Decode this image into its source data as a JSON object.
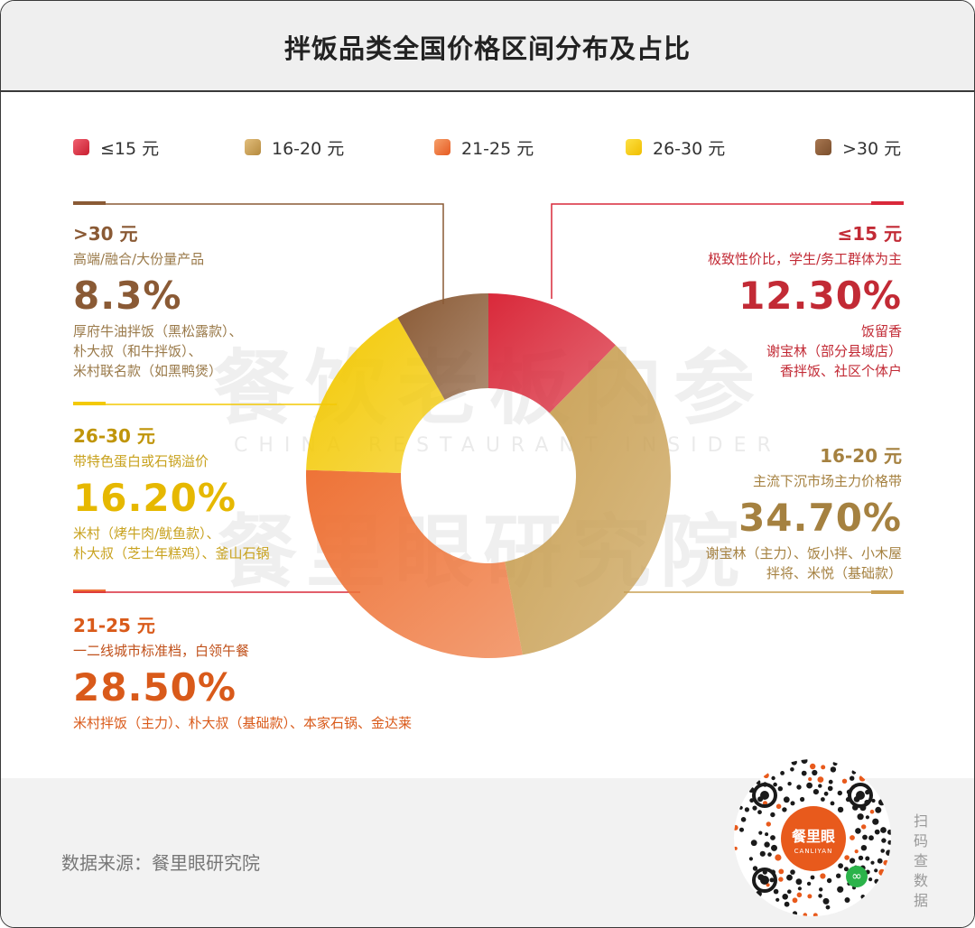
{
  "title": "拌饭品类全国价格区间分布及占比",
  "legend": [
    {
      "label": "≤15 元",
      "color": "#d9293a"
    },
    {
      "label": "16-20 元",
      "color": "#c9a054"
    },
    {
      "label": "21-25 元",
      "color": "#ee7337"
    },
    {
      "label": "26-30 元",
      "color": "#f3c904"
    },
    {
      "label": ">30 元",
      "color": "#8a5a35"
    }
  ],
  "blocks": {
    "b30": {
      "range": ">30 元",
      "desc": "高端/融合/大份量产品",
      "pct": "8.3%",
      "brands": [
        "厚府牛油拌饭（黑松露款）、",
        "朴大叔（和牛拌饭）、",
        "米村联名款（如黑鸭煲）"
      ]
    },
    "b15": {
      "range": "≤15 元",
      "desc": "极致性价比，学生/务工群体为主",
      "pct": "12.30%",
      "brands": [
        "饭留香",
        "谢宝林（部分县域店）",
        "香拌饭、社区个体户"
      ]
    },
    "b26": {
      "range": "26-30 元",
      "desc": "带特色蛋白或石锅溢价",
      "pct": "16.20%",
      "brands": [
        "米村（烤牛肉/鱿鱼款）、",
        "朴大叔（芝士年糕鸡）、釜山石锅"
      ]
    },
    "b16": {
      "range": "16-20 元",
      "desc": "主流下沉市场主力价格带",
      "pct": "34.70%",
      "brands": [
        "谢宝林（主力）、饭小拌、小木屋",
        "拌将、米悦（基础款）"
      ]
    },
    "b21": {
      "range": "21-25 元",
      "desc": "一二线城市标准档，白领午餐",
      "pct": "28.50%",
      "brands": [
        "米村拌饭（主力）、朴大叔（基础款）、本家石锅、金达莱"
      ]
    }
  },
  "chart_data": {
    "type": "pie",
    "donut": true,
    "title": "拌饭品类全国价格区间分布及占比",
    "categories": [
      "≤15 元",
      "16-20 元",
      "21-25 元",
      "26-30 元",
      ">30 元"
    ],
    "values": [
      12.3,
      34.7,
      28.5,
      16.2,
      8.3
    ],
    "colors": [
      "#d9293a",
      "#c9a054",
      "#ee7337",
      "#f3c904",
      "#8a5a35"
    ],
    "legend_position": "top"
  },
  "watermark": {
    "line1": "餐饮老板内参",
    "line2": "CHINA RESTAURANT INSIDER",
    "line3": "餐里眼研究院"
  },
  "footer": {
    "source": "数据来源：餐里眼研究院",
    "qr_brand": "餐里眼",
    "qr_brand_en": "CANLIYAN",
    "scan_label": "扫码查数据"
  }
}
